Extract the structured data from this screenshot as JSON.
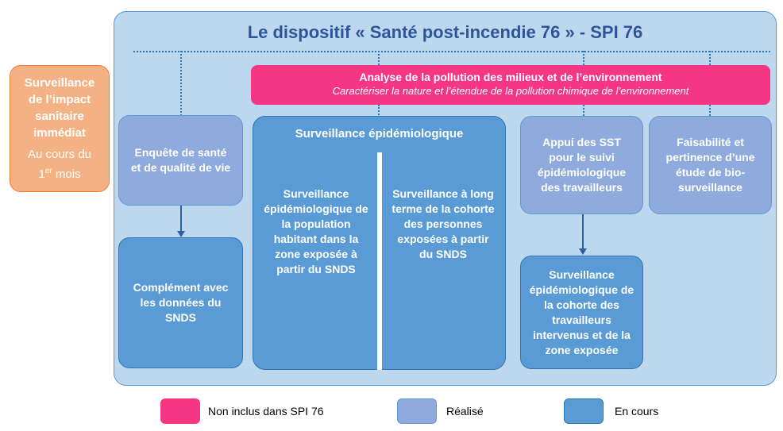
{
  "title": "Le dispositif « Santé post-incendie 76 » - SPI 76",
  "immediate": {
    "l1": "Surveillance",
    "l2": "de l’impact",
    "l3": "sanitaire",
    "l4": "immédiat",
    "sub1": "Au cours du",
    "sub2_num": "1",
    "sub2_sup": "er",
    "sub2_rest": " mois"
  },
  "pollution": {
    "title": "Analyse de la pollution des milieux et de l’environnement",
    "subtitle": "Caractériser la nature et l’étendue de la pollution chimique de l’environnement"
  },
  "boxes": {
    "enquete": "Enquête de santé et de qualité de vie",
    "complement": "Complément avec les données du SNDS",
    "epi_header": "Surveillance épidémiologique",
    "epi_population": "Surveillance épidémiologique de la population habitant dans la zone exposée à partir du SNDS",
    "epi_cohorte": "Surveillance à long terme de la cohorte des personnes exposées à partir du SNDS",
    "sst": "Appui des SST pour le suivi épidémiologique des travailleurs",
    "travailleurs": "Surveillance épidémiologique de la cohorte des travailleurs intervenus et  de la zone exposée",
    "faisabilite": "Faisabilité et pertinence d’une étude de bio-surveillance"
  },
  "legend": {
    "non_inclus": "Non inclus dans SPI 76",
    "realise": "Réalisé",
    "en_cours": "En cours"
  },
  "colors": {
    "non_inclus": "#f43685",
    "realise": "#8faadc",
    "en_cours": "#5b9bd5",
    "immediate": "#f4b183",
    "frame": "#bdd7ee",
    "title": "#2f5597"
  }
}
